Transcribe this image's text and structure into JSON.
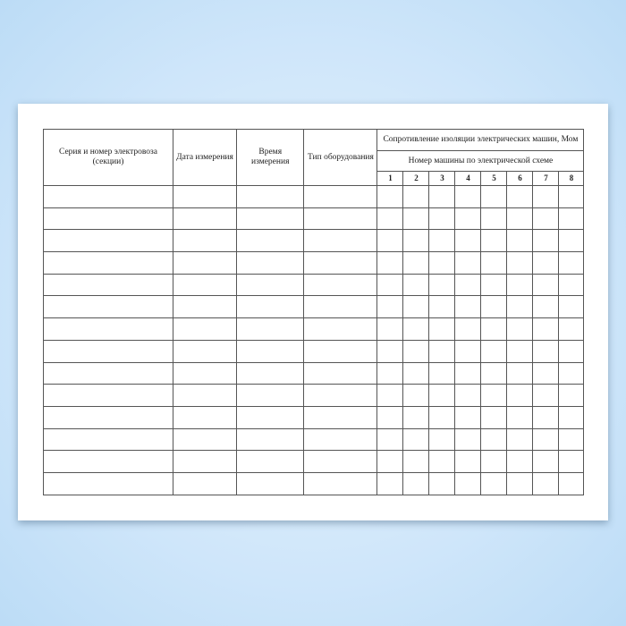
{
  "form": {
    "headers": {
      "series": "Серия и номер электровоза (секции)",
      "date": "Дата измерения",
      "time": "Время измерения",
      "equipment": "Тип оборудования",
      "resistance": "Сопротивление изоляции электрических машин, Мом",
      "machine_number": "Номер машины по электрической схеме",
      "machines": [
        "1",
        "2",
        "3",
        "4",
        "5",
        "6",
        "7",
        "8"
      ]
    },
    "empty_rows": 14
  }
}
